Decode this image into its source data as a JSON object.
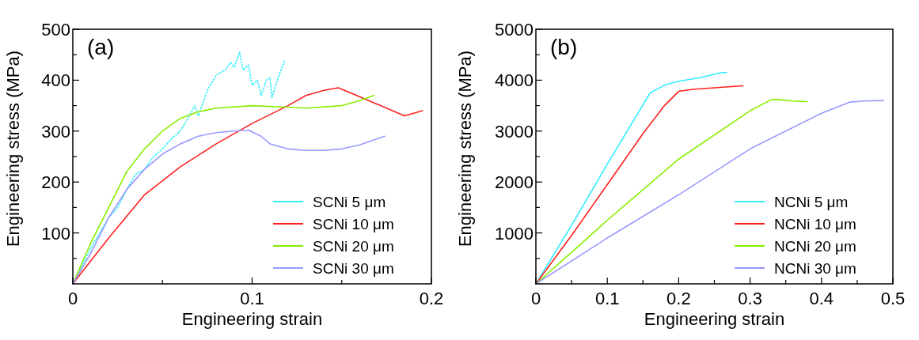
{
  "chart_data": [
    {
      "type": "line",
      "xlabel": "Engineering strain",
      "ylabel": "Engineering stress (MPa)",
      "annotations": [
        "(a)"
      ],
      "xlim": [
        0,
        0.2
      ],
      "ylim": [
        0,
        500
      ],
      "xticks": [
        0,
        {
          "value": 0.05,
          "label": null
        },
        0.1,
        {
          "value": 0.15,
          "label": null
        },
        0.2
      ],
      "yticks": [
        {
          "value": 50,
          "label": null
        },
        100,
        {
          "value": 150,
          "label": null
        },
        200,
        {
          "value": 250,
          "label": null
        },
        300,
        {
          "value": 350,
          "label": null
        },
        400,
        {
          "value": 450,
          "label": null
        },
        500
      ],
      "grid": false,
      "legend": "bottom right",
      "series": [
        {
          "name": "SCNi 5 μm",
          "color": "#33eeff",
          "line_style": "dotted",
          "x": [
            0,
            0.01,
            0.02,
            0.025,
            0.03,
            0.035,
            0.04,
            0.045,
            0.05,
            0.055,
            0.06,
            0.065,
            0.068,
            0.07,
            0.075,
            0.08,
            0.085,
            0.088,
            0.09,
            0.093,
            0.095,
            0.098,
            0.1,
            0.103,
            0.105,
            0.108,
            0.11,
            0.111,
            0.115,
            0.118
          ],
          "values": [
            0,
            70,
            130,
            150,
            185,
            215,
            225,
            250,
            265,
            285,
            300,
            330,
            350,
            330,
            380,
            410,
            420,
            435,
            425,
            455,
            420,
            430,
            390,
            400,
            370,
            400,
            405,
            365,
            410,
            437
          ]
        },
        {
          "name": "SCNi 10 μm",
          "color": "#ff2020",
          "x": [
            0,
            0.02,
            0.04,
            0.06,
            0.08,
            0.1,
            0.12,
            0.13,
            0.14,
            0.148,
            0.155,
            0.165,
            0.175,
            0.185,
            0.195
          ],
          "values": [
            0,
            90,
            175,
            230,
            275,
            315,
            350,
            370,
            380,
            385,
            375,
            360,
            345,
            330,
            340
          ]
        },
        {
          "name": "SCNi 20 μm",
          "color": "#88ee00",
          "x": [
            0,
            0.01,
            0.02,
            0.03,
            0.04,
            0.05,
            0.06,
            0.07,
            0.08,
            0.1,
            0.12,
            0.13,
            0.15,
            0.16,
            0.168
          ],
          "values": [
            0,
            80,
            150,
            220,
            265,
            300,
            325,
            338,
            345,
            350,
            347,
            345,
            350,
            360,
            370
          ]
        },
        {
          "name": "SCNi 30 μm",
          "color": "#9999ff",
          "x": [
            0,
            0.01,
            0.02,
            0.03,
            0.04,
            0.05,
            0.06,
            0.07,
            0.08,
            0.09,
            0.098,
            0.105,
            0.11,
            0.12,
            0.13,
            0.14,
            0.15,
            0.16,
            0.174
          ],
          "values": [
            0,
            60,
            130,
            185,
            225,
            255,
            275,
            290,
            297,
            300,
            302,
            290,
            275,
            265,
            262,
            262,
            265,
            273,
            290
          ]
        }
      ]
    },
    {
      "type": "line",
      "xlabel": "Engineering strain",
      "ylabel": "Engineering stress (MPa)",
      "annotations": [
        "(b)"
      ],
      "xlim": [
        0,
        0.5
      ],
      "ylim": [
        0,
        5000
      ],
      "xticks": [
        0,
        {
          "value": 0.05,
          "label": null
        },
        0.1,
        {
          "value": 0.15,
          "label": null
        },
        0.2,
        {
          "value": 0.25,
          "label": null
        },
        0.3,
        {
          "value": 0.35,
          "label": null
        },
        0.4,
        {
          "value": 0.45,
          "label": null
        },
        0.5
      ],
      "yticks": [
        {
          "value": 500,
          "label": null
        },
        1000,
        {
          "value": 1500,
          "label": null
        },
        2000,
        {
          "value": 2500,
          "label": null
        },
        3000,
        {
          "value": 3500,
          "label": null
        },
        4000,
        {
          "value": 4500,
          "label": null
        },
        5000
      ],
      "grid": false,
      "legend": "bottom right",
      "series": [
        {
          "name": "NCNi 5 μm",
          "color": "#33eeff",
          "x": [
            0,
            0.05,
            0.1,
            0.13,
            0.16,
            0.18,
            0.2,
            0.23,
            0.26,
            0.267
          ],
          "values": [
            0,
            1150,
            2350,
            3050,
            3750,
            3900,
            3980,
            4050,
            4150,
            4150
          ]
        },
        {
          "name": "NCNi 10 μm",
          "color": "#ff2020",
          "x": [
            0,
            0.05,
            0.1,
            0.15,
            0.18,
            0.2,
            0.22,
            0.25,
            0.29
          ],
          "values": [
            0,
            950,
            1950,
            2950,
            3500,
            3780,
            3820,
            3850,
            3890
          ]
        },
        {
          "name": "NCNi 20 μm",
          "color": "#88ee00",
          "x": [
            0,
            0.05,
            0.1,
            0.2,
            0.3,
            0.33,
            0.34,
            0.36,
            0.38
          ],
          "values": [
            0,
            620,
            1250,
            2450,
            3400,
            3620,
            3620,
            3590,
            3580
          ]
        },
        {
          "name": "NCNi 30 μm",
          "color": "#9999ff",
          "x": [
            0,
            0.1,
            0.2,
            0.3,
            0.4,
            0.44,
            0.46,
            0.487
          ],
          "values": [
            0,
            900,
            1750,
            2650,
            3350,
            3570,
            3590,
            3600
          ]
        }
      ]
    }
  ]
}
